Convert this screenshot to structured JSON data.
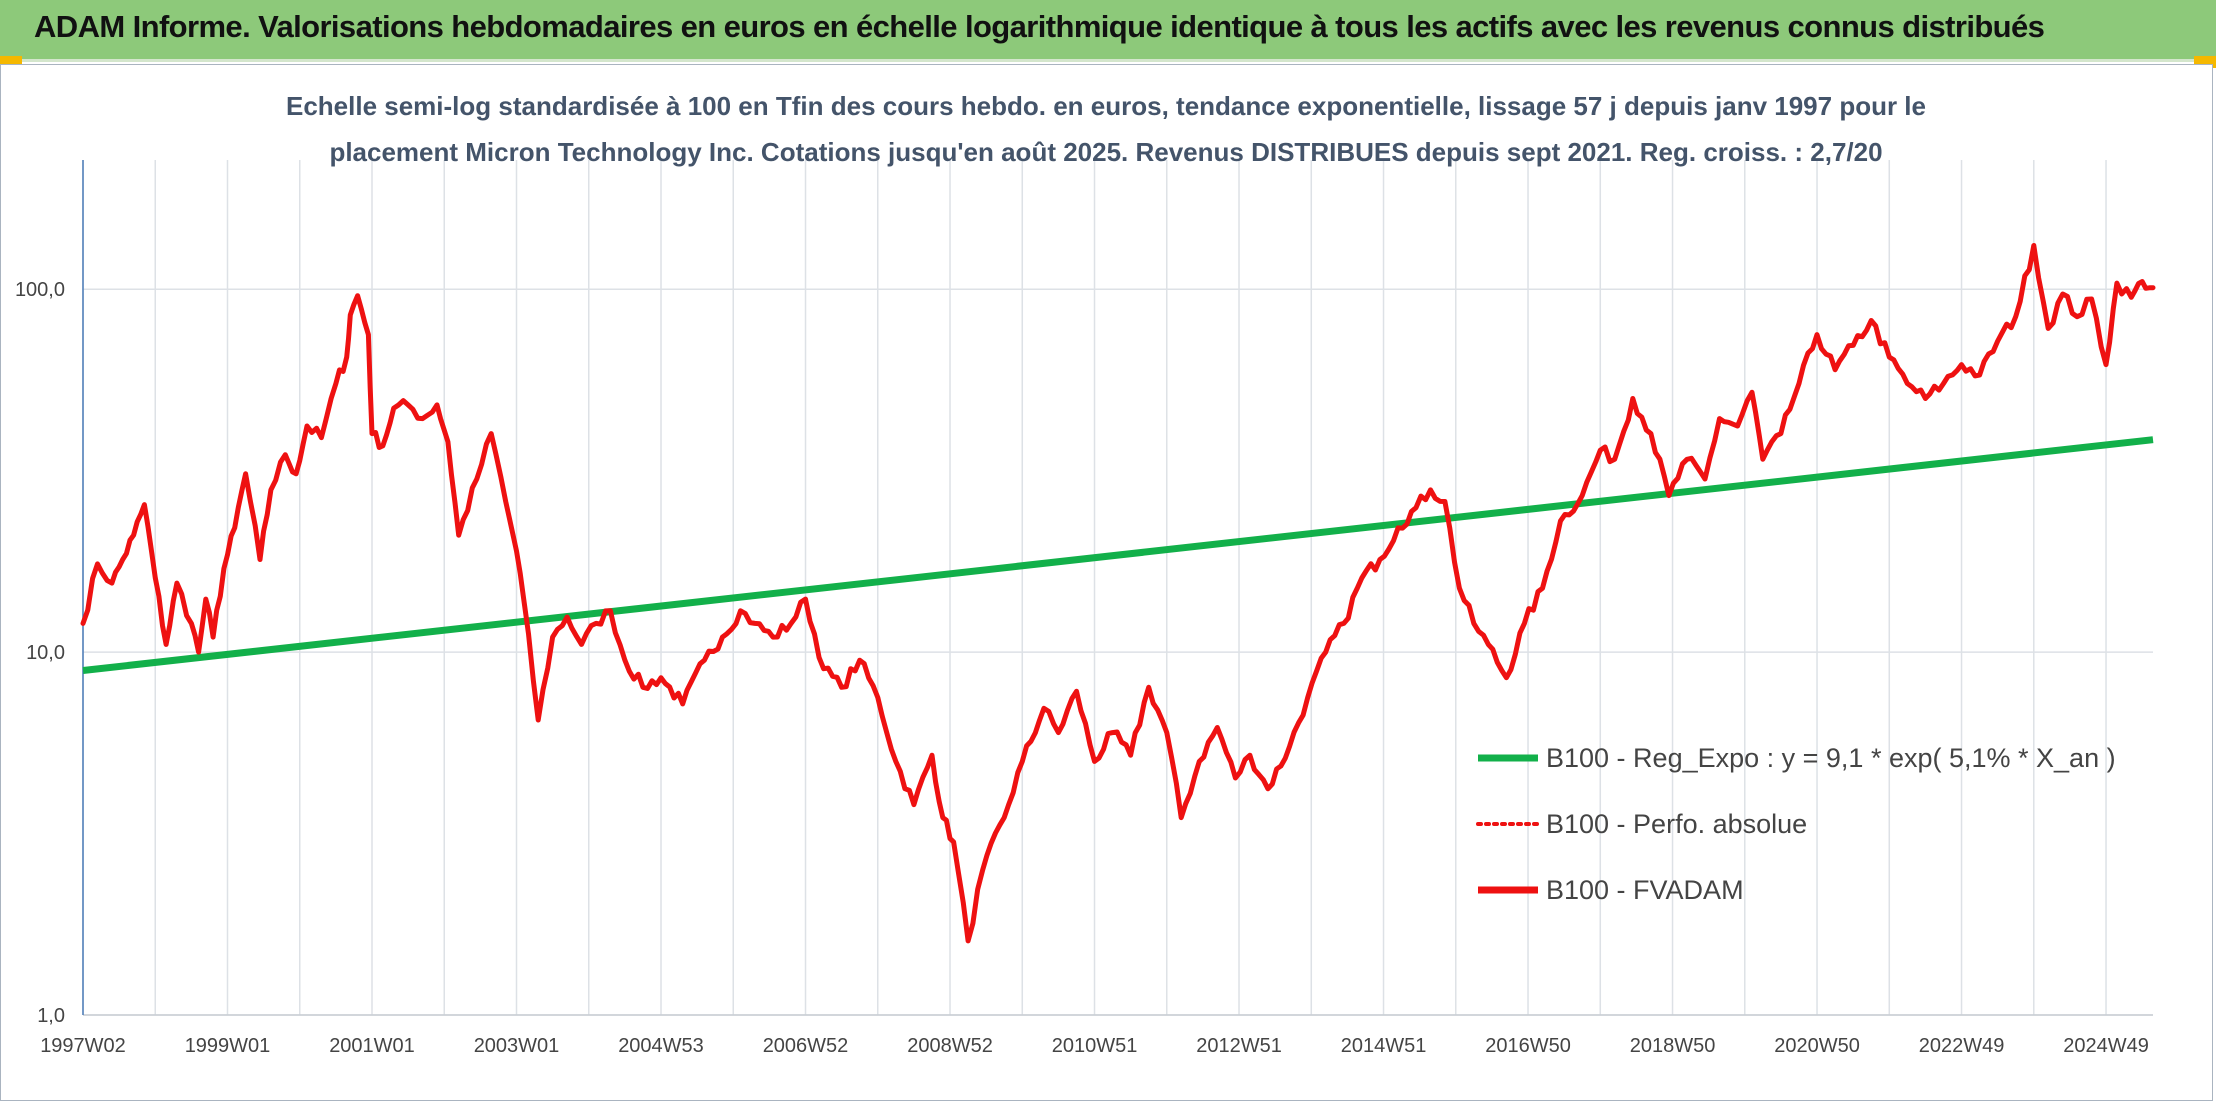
{
  "header": {
    "title": "ADAM Informe. Valorisations hebdomadaires en euros en échelle logarithmique identique à tous les actifs avec les revenus connus distribués"
  },
  "colors": {
    "banner": "#8dc97a",
    "regression": "#12b04a",
    "fvadam": "#ee1111",
    "perfo": "#ee1111",
    "grid": "#dde1e6"
  },
  "chart_data": {
    "type": "line",
    "title": "Echelle semi-log standardisée à 100 en Tfin des cours hebdo. en euros, tendance exponentielle, lissage 57 j depuis janv 1997 pour le placement Micron Technology Inc. Cotations jusqu'en août 2025. Revenus DISTRIBUES depuis sept 2021. Reg. croiss. : 2,7/20",
    "title_lines": [
      "Echelle semi-log standardisée à 100 en Tfin des cours hebdo. en euros, tendance exponentielle, lissage 57 j depuis janv 1997 pour le",
      "placement Micron Technology Inc. Cotations jusqu'en août 2025. Revenus DISTRIBUES depuis sept 2021. Reg. croiss. : 2,7/20"
    ],
    "y_scale": "log",
    "ylim": [
      1,
      200
    ],
    "xlim": [
      1997.0,
      2025.65
    ],
    "y_ticks": [
      {
        "value": 1,
        "label": "1,0"
      },
      {
        "value": 10,
        "label": "10,0"
      },
      {
        "value": 100,
        "label": "100,0"
      }
    ],
    "x_ticks": [
      {
        "value": 1997.0,
        "label": "1997W02"
      },
      {
        "value": 1999.0,
        "label": "1999W01"
      },
      {
        "value": 2001.0,
        "label": "2001W01"
      },
      {
        "value": 2003.0,
        "label": "2003W01"
      },
      {
        "value": 2005.0,
        "label": "2004W53"
      },
      {
        "value": 2007.0,
        "label": "2006W52"
      },
      {
        "value": 2009.0,
        "label": "2008W52"
      },
      {
        "value": 2011.0,
        "label": "2010W51"
      },
      {
        "value": 2013.0,
        "label": "2012W51"
      },
      {
        "value": 2015.0,
        "label": "2014W51"
      },
      {
        "value": 2017.0,
        "label": "2016W50"
      },
      {
        "value": 2019.0,
        "label": "2018W50"
      },
      {
        "value": 2021.0,
        "label": "2020W50"
      },
      {
        "value": 2023.0,
        "label": "2022W49"
      },
      {
        "value": 2025.0,
        "label": "2024W49"
      }
    ],
    "grid": true,
    "legend_position": "bottom-right",
    "series": [
      {
        "name": "B100 - Reg_Expo : y = 9,1 * exp( 5,1% *  X_an )",
        "style": "solid",
        "color": "#12b04a",
        "x": [
          1997.0,
          2025.65
        ],
        "y": [
          8.9,
          38.5
        ]
      },
      {
        "name": "B100 - Perfo. absolue",
        "style": "dotted",
        "color": "#ee1111",
        "x": [],
        "y": []
      },
      {
        "name": "B100 - FVADAM",
        "style": "solid",
        "color": "#ee1111",
        "x": [
          1997.0,
          1997.2,
          1997.4,
          1997.55,
          1997.7,
          1997.85,
          1998.0,
          1998.15,
          1998.3,
          1998.5,
          1998.6,
          1998.7,
          1998.8,
          1998.95,
          1999.1,
          1999.25,
          1999.45,
          1999.6,
          1999.8,
          1999.95,
          2000.1,
          2000.3,
          2000.5,
          2000.65,
          2000.7,
          2000.8,
          2000.95,
          2001.0,
          2001.15,
          2001.3,
          2001.5,
          2001.7,
          2001.9,
          2002.05,
          2002.2,
          2002.45,
          2002.65,
          2002.85,
          2003.0,
          2003.1,
          2003.3,
          2003.5,
          2003.7,
          2003.9,
          2004.1,
          2004.3,
          2004.5,
          2004.75,
          2005.0,
          2005.3,
          2005.6,
          2005.85,
          2006.1,
          2006.3,
          2006.55,
          2006.8,
          2007.0,
          2007.25,
          2007.5,
          2007.75,
          2008.0,
          2008.25,
          2008.5,
          2008.75,
          2008.9,
          2009.05,
          2009.25,
          2009.45,
          2009.75,
          2010.0,
          2010.3,
          2010.5,
          2010.75,
          2011.0,
          2011.25,
          2011.5,
          2011.75,
          2012.0,
          2012.2,
          2012.45,
          2012.7,
          2012.95,
          2013.15,
          2013.4,
          2013.7,
          2013.95,
          2014.2,
          2014.45,
          2014.7,
          2014.95,
          2015.2,
          2015.45,
          2015.65,
          2015.85,
          2016.05,
          2016.25,
          2016.45,
          2016.7,
          2016.95,
          2017.2,
          2017.45,
          2017.75,
          2018.0,
          2018.2,
          2018.45,
          2018.7,
          2018.95,
          2019.2,
          2019.45,
          2019.65,
          2019.9,
          2020.1,
          2020.25,
          2020.5,
          2020.75,
          2021.0,
          2021.25,
          2021.5,
          2021.75,
          2022.0,
          2022.25,
          2022.5,
          2022.75,
          2023.0,
          2023.25,
          2023.5,
          2023.75,
          2024.0,
          2024.2,
          2024.4,
          2024.6,
          2024.8,
          2025.0,
          2025.15,
          2025.35,
          2025.5,
          2025.65
        ],
        "y": [
          12.0,
          17.5,
          15.5,
          18.0,
          21.0,
          25.5,
          16.0,
          10.5,
          15.5,
          12.0,
          10.0,
          14.0,
          11.0,
          17.0,
          22.0,
          31.0,
          18.0,
          28.0,
          35.0,
          31.0,
          42.0,
          39.0,
          55.0,
          65.0,
          85.0,
          96.0,
          75.0,
          40.0,
          37.0,
          47.0,
          48.0,
          44.0,
          48.0,
          38.0,
          21.0,
          30.0,
          40.0,
          26.0,
          19.0,
          14.0,
          6.5,
          11.0,
          12.5,
          10.5,
          12.0,
          13.0,
          9.5,
          8.0,
          8.5,
          7.2,
          9.5,
          11.0,
          13.0,
          12.0,
          11.0,
          12.0,
          14.0,
          9.0,
          8.0,
          9.5,
          7.5,
          5.0,
          3.8,
          5.2,
          3.5,
          3.0,
          1.6,
          2.5,
          3.5,
          5.0,
          7.0,
          6.0,
          7.8,
          5.0,
          6.0,
          5.2,
          8.0,
          6.0,
          3.5,
          5.0,
          6.2,
          4.5,
          5.2,
          4.2,
          5.5,
          7.5,
          10.0,
          12.0,
          16.0,
          18.0,
          22.0,
          25.0,
          28.0,
          26.0,
          15.0,
          12.0,
          10.5,
          8.5,
          12.0,
          15.0,
          23.0,
          27.0,
          36.0,
          34.0,
          50.0,
          40.0,
          27.0,
          34.0,
          30.0,
          44.0,
          42.0,
          52.0,
          34.0,
          40.0,
          55.0,
          75.0,
          60.0,
          70.0,
          82.0,
          65.0,
          55.0,
          50.0,
          55.0,
          62.0,
          58.0,
          72.0,
          84.0,
          132.0,
          78.0,
          97.0,
          84.0,
          94.0,
          62.0,
          104.0,
          95.0,
          105.0,
          101.0
        ]
      }
    ]
  }
}
